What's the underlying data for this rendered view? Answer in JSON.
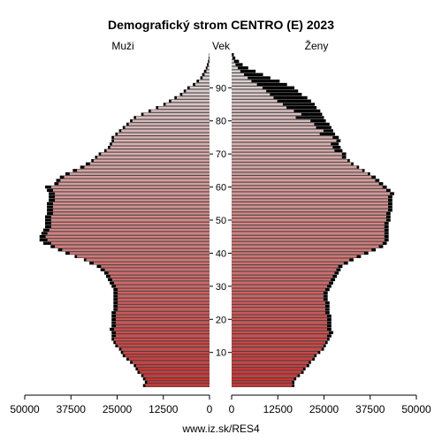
{
  "chart_data": {
    "type": "bar",
    "orientation": "horizontal",
    "title": "Demografický strom CENTRO (E) 2023",
    "age_label": "Vek",
    "series": [
      {
        "name": "Muži",
        "color_light": "#dddddd",
        "color_dark": "#cc3333",
        "outline": "#000000",
        "values": [
          18000,
          17500,
          18000,
          18500,
          19500,
          20000,
          20500,
          21500,
          22500,
          23500,
          24000,
          24500,
          25500,
          26000,
          26500,
          26500,
          26500,
          27000,
          26500,
          26500,
          26500,
          26500,
          26500,
          26000,
          26000,
          26000,
          26000,
          26000,
          26000,
          26000,
          26500,
          27000,
          27500,
          28000,
          28500,
          29500,
          30500,
          32500,
          34000,
          36500,
          39000,
          41000,
          43000,
          45000,
          46000,
          46000,
          45500,
          45000,
          44500,
          44500,
          44500,
          44500,
          44000,
          44000,
          44000,
          44000,
          43500,
          43500,
          43500,
          44000,
          44500,
          42000,
          41500,
          40500,
          39000,
          37000,
          35000,
          33500,
          32000,
          31000,
          30000,
          28500,
          27500,
          27000,
          26500,
          26500,
          25500,
          24500,
          23500,
          22500,
          21500,
          20500,
          18500,
          16500,
          14500,
          12500,
          11000,
          9500,
          8000,
          7000,
          6000,
          4500,
          3500,
          2500,
          2000,
          1500,
          1000,
          700,
          400,
          200,
          100
        ],
        "noimmig_values": [
          17500,
          17000,
          17500,
          18000,
          19000,
          19500,
          20000,
          21000,
          22000,
          23000,
          23500,
          24000,
          25000,
          25500,
          26000,
          25500,
          25500,
          26000,
          25500,
          25500,
          25500,
          25500,
          25500,
          25000,
          25000,
          25000,
          25000,
          25000,
          25000,
          25000,
          25500,
          26000,
          26500,
          27000,
          27500,
          28500,
          29500,
          31500,
          33500,
          36000,
          38000,
          40000,
          42000,
          43000,
          44000,
          44500,
          44000,
          43500,
          43000,
          43000,
          43000,
          43000,
          42500,
          42500,
          42500,
          42500,
          42000,
          42000,
          42000,
          42500,
          43000,
          41000,
          40500,
          39500,
          38000,
          36000,
          34000,
          32500,
          31500,
          30500,
          29500,
          28000,
          27000,
          26500,
          26000,
          26000,
          25000,
          24000,
          23000,
          22000,
          21000,
          20000,
          18000,
          16000,
          14000,
          12000,
          10500,
          9000,
          7500,
          6500,
          5500,
          4000,
          3000,
          2000,
          1500,
          1000,
          700,
          400,
          200,
          100,
          50
        ]
      },
      {
        "name": "Ženy",
        "color_light": "#dddddd",
        "color_dark": "#cc3333",
        "outline": "#000000",
        "values": [
          17000,
          17000,
          17500,
          18500,
          19500,
          20000,
          21000,
          21500,
          22500,
          23000,
          24000,
          25000,
          25500,
          26000,
          26500,
          27000,
          27500,
          27000,
          27000,
          27000,
          27000,
          27000,
          26500,
          26500,
          26500,
          26500,
          26000,
          26000,
          26000,
          26500,
          27000,
          27500,
          28000,
          28500,
          29000,
          29500,
          30000,
          31500,
          33000,
          35000,
          37000,
          39000,
          41000,
          42000,
          42500,
          42500,
          42500,
          42500,
          42500,
          42500,
          43000,
          43000,
          43000,
          43500,
          43500,
          43500,
          43500,
          43500,
          44000,
          43000,
          42000,
          41000,
          40000,
          39000,
          37500,
          36000,
          34500,
          33000,
          32000,
          31000,
          31000,
          30000,
          29500,
          29000,
          29500,
          29000,
          28000,
          27500,
          27000,
          26500,
          25500,
          25000,
          24500,
          24000,
          23000,
          22500,
          21500,
          20500,
          19000,
          18000,
          17000,
          15000,
          13000,
          10500,
          8500,
          6500,
          4500,
          3000,
          2000,
          1000,
          600
        ],
        "noimmig_values": [
          16500,
          16500,
          17000,
          18000,
          19000,
          19500,
          20500,
          21000,
          22000,
          22500,
          23500,
          24500,
          25000,
          25500,
          26000,
          26000,
          26500,
          26000,
          26000,
          26000,
          26000,
          26000,
          25500,
          25500,
          25500,
          25500,
          25000,
          25000,
          25000,
          25500,
          26000,
          26500,
          27000,
          27500,
          28000,
          28500,
          29000,
          30500,
          32000,
          34000,
          36000,
          38000,
          40000,
          41000,
          41500,
          41500,
          41500,
          41500,
          41500,
          41500,
          42000,
          42000,
          42000,
          42500,
          42500,
          42500,
          42500,
          42500,
          43000,
          42000,
          41000,
          40000,
          39000,
          38000,
          37000,
          35500,
          34000,
          32500,
          31500,
          30000,
          30000,
          28000,
          27500,
          27000,
          28500,
          27500,
          24000,
          25000,
          23000,
          22500,
          21500,
          17500,
          19000,
          17000,
          15000,
          14000,
          12500,
          11500,
          10500,
          9500,
          8500,
          7000,
          5500,
          4500,
          3500,
          2500,
          1800,
          1200,
          800,
          400,
          200
        ]
      }
    ],
    "age_ticks": [
      10,
      20,
      30,
      40,
      50,
      60,
      70,
      80,
      90
    ],
    "x_ticks_left": [
      "50000",
      "37500",
      "25000",
      "12500",
      "0"
    ],
    "x_ticks_right": [
      "0",
      "12500",
      "25000",
      "37500",
      "50000"
    ],
    "xlim": [
      0,
      50000
    ],
    "ylim": [
      0,
      100
    ],
    "footer": "www.iz.sk/RES4"
  }
}
